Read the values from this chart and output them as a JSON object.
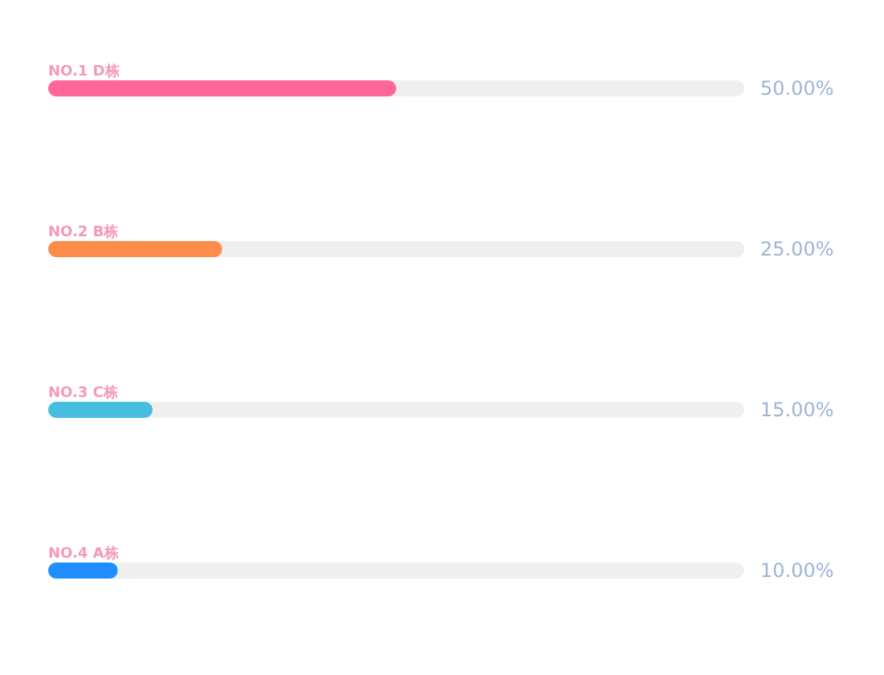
{
  "chart_data": {
    "type": "bar",
    "orientation": "horizontal",
    "categories": [
      "NO.1 D栋",
      "NO.2 B栋",
      "NO.3 C栋",
      "NO.4 A栋"
    ],
    "xlim": [
      0,
      100
    ],
    "series": [
      {
        "colors": [
          "#ff6699",
          "#ff8c4a",
          "#47bde0",
          "#1f8fff"
        ],
        "values": [
          50,
          25,
          15,
          10
        ],
        "value_labels": [
          "50.00%",
          "25.00%",
          "15.00%",
          "10.00%"
        ]
      }
    ]
  }
}
